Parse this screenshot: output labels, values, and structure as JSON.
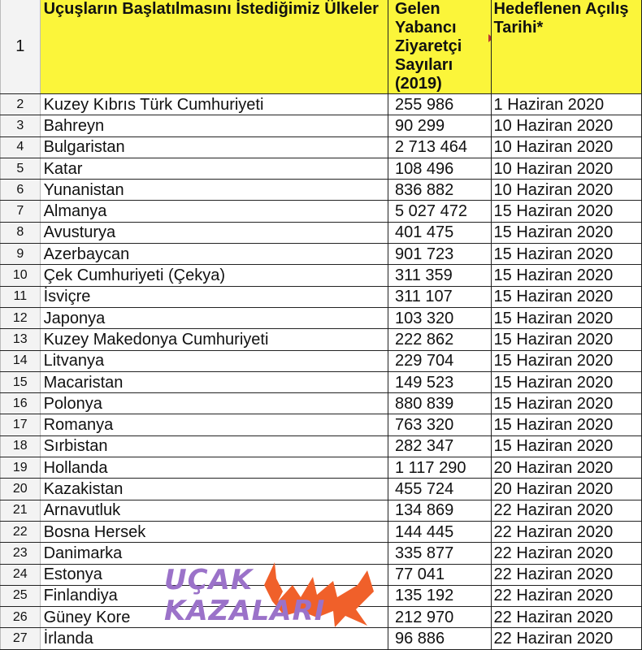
{
  "header": {
    "row": "1",
    "col_a": "Uçuşların Başlatılmasını İstediğimiz Ülkeler",
    "col_b": "Gelen Yabancı Ziyaretçi Sayıları (2019)",
    "col_c": "Hedeflenen Açılış Tarihi*"
  },
  "header_fill": "#fbf53a",
  "rows": [
    [
      "2",
      "Kuzey Kıbrıs Türk Cumhuriyeti",
      "255 986",
      "1 Haziran 2020"
    ],
    [
      "3",
      "Bahreyn",
      "90 299",
      "10 Haziran 2020"
    ],
    [
      "4",
      "Bulgaristan",
      "2 713 464",
      "10 Haziran 2020"
    ],
    [
      "5",
      "Katar",
      "108 496",
      "10 Haziran 2020"
    ],
    [
      "6",
      "Yunanistan",
      "836 882",
      "10 Haziran 2020"
    ],
    [
      "7",
      "Almanya",
      "5 027 472",
      "15 Haziran 2020"
    ],
    [
      "8",
      "Avusturya",
      "401 475",
      "15 Haziran 2020"
    ],
    [
      "9",
      "Azerbaycan",
      "901 723",
      "15 Haziran 2020"
    ],
    [
      "10",
      "Çek Cumhuriyeti (Çekya)",
      "311 359",
      "15 Haziran 2020"
    ],
    [
      "11",
      "İsviçre",
      "311 107",
      "15 Haziran 2020"
    ],
    [
      "12",
      "Japonya",
      "103 320",
      "15 Haziran 2020"
    ],
    [
      "13",
      "Kuzey Makedonya Cumhuriyeti",
      "222 862",
      "15 Haziran 2020"
    ],
    [
      "14",
      "Litvanya",
      "229 704",
      "15 Haziran 2020"
    ],
    [
      "15",
      "Macaristan",
      "149 523",
      "15 Haziran 2020"
    ],
    [
      "16",
      "Polonya",
      "880 839",
      "15 Haziran 2020"
    ],
    [
      "17",
      "Romanya",
      "763 320",
      "15 Haziran 2020"
    ],
    [
      "18",
      "Sırbistan",
      "282 347",
      "15 Haziran 2020"
    ],
    [
      "19",
      "Hollanda",
      "1 117 290",
      "20 Haziran 2020"
    ],
    [
      "20",
      "Kazakistan",
      "455 724",
      "20 Haziran 2020"
    ],
    [
      "21",
      "Arnavutluk",
      "134 869",
      "22 Haziran 2020"
    ],
    [
      "22",
      "Bosna Hersek",
      "144 445",
      "22 Haziran 2020"
    ],
    [
      "23",
      "Danimarka",
      "335 877",
      "22 Haziran 2020"
    ],
    [
      "24",
      "Estonya",
      "77 041",
      "22 Haziran 2020"
    ],
    [
      "25",
      "Finlandiya",
      "135 192",
      "22 Haziran 2020"
    ],
    [
      "26",
      "Güney Kore",
      "212 970",
      "22 Haziran 2020"
    ],
    [
      "27",
      "İrlanda",
      "96 886",
      "22 Haziran 2020"
    ]
  ],
  "watermark": {
    "line1": "UÇAK",
    "line2": "KAZALARI",
    "text_color": "#9b72c9",
    "flame_color": "#f0602a"
  }
}
